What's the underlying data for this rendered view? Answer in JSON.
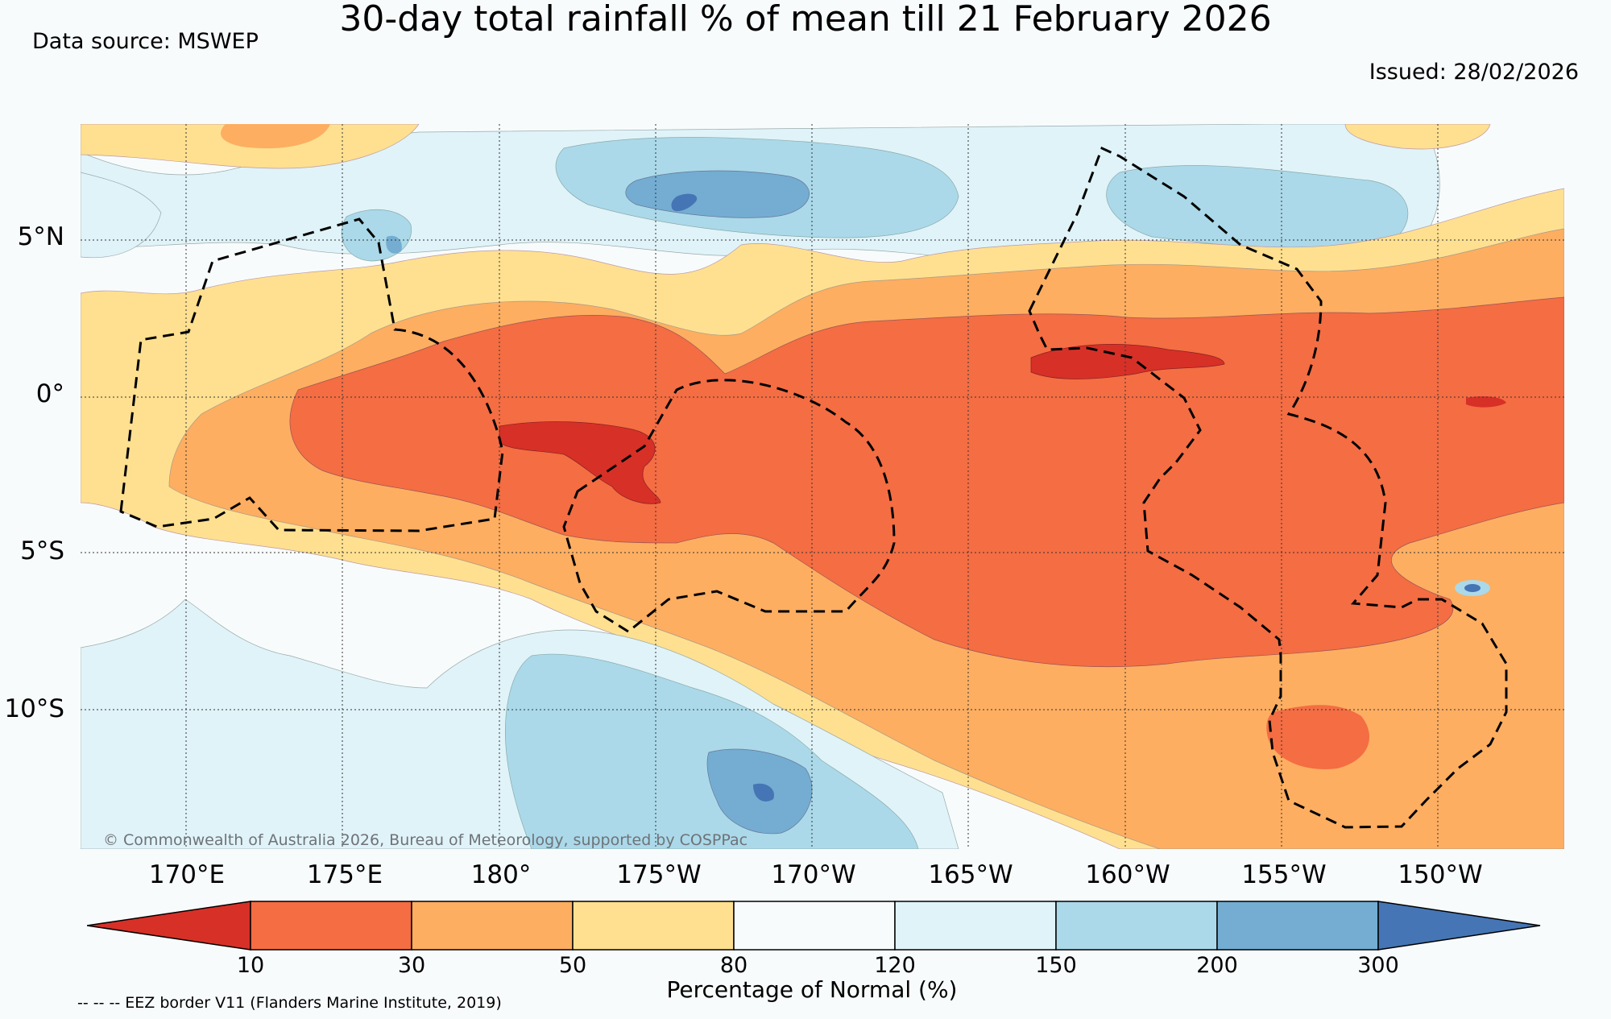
{
  "header": {
    "title": "30-day total rainfall % of mean till 21 February 2026",
    "data_source": "Data source: MSWEP",
    "issued": "Issued: 28/02/2026"
  },
  "map": {
    "lat_labels": [
      "5°N",
      "0°",
      "5°S",
      "10°S"
    ],
    "lon_labels": [
      "170°E",
      "175°E",
      "180°",
      "175°W",
      "170°W",
      "165°W",
      "160°W",
      "155°W",
      "150°W"
    ],
    "copyright": "© Commonwealth of Australia 2026, Bureau of Meteorology, supported by COSPPac"
  },
  "colorbar": {
    "ticks": [
      "10",
      "30",
      "50",
      "80",
      "120",
      "150",
      "200",
      "300"
    ],
    "label": "Percentage of Normal (%)",
    "colors": [
      "#d73027",
      "#f46d43",
      "#fdae61",
      "#fee090",
      "#f8fbfc",
      "#e0f3f8",
      "#abd9e9",
      "#74add1",
      "#4575b4"
    ]
  },
  "footer": {
    "eez_note": "-- -- -- EEZ border V11 (Flanders Marine Institute, 2019)"
  }
}
